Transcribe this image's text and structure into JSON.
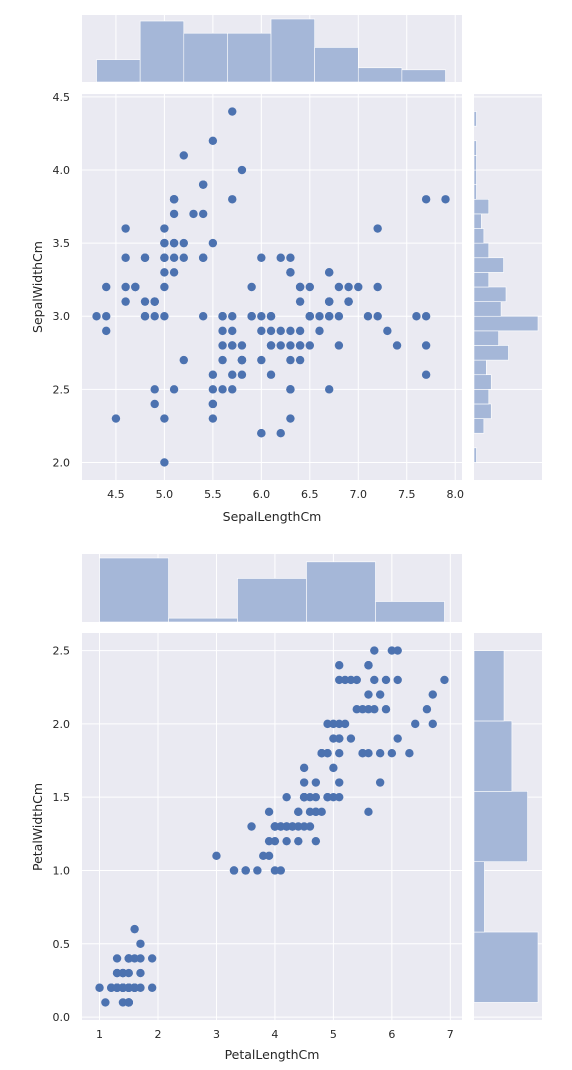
{
  "chart_data": [
    {
      "type": "scatter",
      "xlabel": "SepalLengthCm",
      "ylabel": "SepalWidthCm",
      "xlim": [
        4.15,
        8.07
      ],
      "ylim": [
        1.88,
        4.52
      ],
      "xticks": [
        4.5,
        5.0,
        5.5,
        6.0,
        6.5,
        7.0,
        7.5,
        8.0
      ],
      "xtick_labels": [
        "4.5",
        "5.0",
        "5.5",
        "6.0",
        "6.5",
        "7.0",
        "7.5",
        "8.0"
      ],
      "yticks": [
        2.0,
        2.5,
        3.0,
        3.5,
        4.0,
        4.5
      ],
      "ytick_labels": [
        "2.0",
        "2.5",
        "3.0",
        "3.5",
        "4.0",
        "4.5"
      ],
      "grid": true,
      "point_color": "#4c72b0",
      "hist_color": "#a5b7d8",
      "bg_color": "#eaeaf2",
      "points": [
        [
          5.1,
          3.5
        ],
        [
          4.9,
          3.0
        ],
        [
          4.7,
          3.2
        ],
        [
          4.6,
          3.1
        ],
        [
          5.0,
          3.6
        ],
        [
          5.4,
          3.9
        ],
        [
          4.6,
          3.4
        ],
        [
          5.0,
          3.4
        ],
        [
          4.4,
          2.9
        ],
        [
          4.9,
          3.1
        ],
        [
          5.4,
          3.7
        ],
        [
          4.8,
          3.4
        ],
        [
          4.8,
          3.0
        ],
        [
          4.3,
          3.0
        ],
        [
          5.8,
          4.0
        ],
        [
          5.7,
          4.4
        ],
        [
          5.4,
          3.9
        ],
        [
          5.1,
          3.5
        ],
        [
          5.7,
          3.8
        ],
        [
          5.1,
          3.8
        ],
        [
          5.4,
          3.4
        ],
        [
          5.1,
          3.7
        ],
        [
          4.6,
          3.6
        ],
        [
          5.1,
          3.3
        ],
        [
          4.8,
          3.4
        ],
        [
          5.0,
          3.0
        ],
        [
          5.0,
          3.4
        ],
        [
          5.2,
          3.5
        ],
        [
          5.2,
          3.4
        ],
        [
          4.7,
          3.2
        ],
        [
          4.8,
          3.1
        ],
        [
          5.4,
          3.4
        ],
        [
          5.2,
          4.1
        ],
        [
          5.5,
          4.2
        ],
        [
          4.9,
          3.1
        ],
        [
          5.0,
          3.2
        ],
        [
          5.5,
          3.5
        ],
        [
          4.9,
          3.1
        ],
        [
          4.4,
          3.0
        ],
        [
          5.1,
          3.4
        ],
        [
          5.0,
          3.5
        ],
        [
          4.5,
          2.3
        ],
        [
          4.4,
          3.2
        ],
        [
          5.0,
          3.5
        ],
        [
          5.1,
          3.8
        ],
        [
          4.8,
          3.0
        ],
        [
          5.1,
          3.8
        ],
        [
          4.6,
          3.2
        ],
        [
          5.3,
          3.7
        ],
        [
          5.0,
          3.3
        ],
        [
          7.0,
          3.2
        ],
        [
          6.4,
          3.2
        ],
        [
          6.9,
          3.1
        ],
        [
          5.5,
          2.3
        ],
        [
          6.5,
          2.8
        ],
        [
          5.7,
          2.8
        ],
        [
          6.3,
          3.3
        ],
        [
          4.9,
          2.4
        ],
        [
          6.6,
          2.9
        ],
        [
          5.2,
          2.7
        ],
        [
          5.0,
          2.0
        ],
        [
          5.9,
          3.0
        ],
        [
          6.0,
          2.2
        ],
        [
          6.1,
          2.9
        ],
        [
          5.6,
          2.9
        ],
        [
          6.7,
          3.1
        ],
        [
          5.6,
          3.0
        ],
        [
          5.8,
          2.7
        ],
        [
          6.2,
          2.2
        ],
        [
          5.6,
          2.5
        ],
        [
          5.9,
          3.2
        ],
        [
          6.1,
          2.8
        ],
        [
          6.3,
          2.5
        ],
        [
          6.1,
          2.8
        ],
        [
          6.4,
          2.9
        ],
        [
          6.6,
          3.0
        ],
        [
          6.8,
          2.8
        ],
        [
          6.7,
          3.0
        ],
        [
          6.0,
          2.9
        ],
        [
          5.7,
          2.6
        ],
        [
          5.5,
          2.4
        ],
        [
          5.5,
          2.4
        ],
        [
          5.8,
          2.7
        ],
        [
          6.0,
          2.7
        ],
        [
          5.4,
          3.0
        ],
        [
          6.0,
          3.4
        ],
        [
          6.7,
          3.1
        ],
        [
          6.3,
          2.3
        ],
        [
          5.6,
          3.0
        ],
        [
          5.5,
          2.5
        ],
        [
          5.5,
          2.6
        ],
        [
          6.1,
          3.0
        ],
        [
          5.8,
          2.6
        ],
        [
          5.0,
          2.3
        ],
        [
          5.6,
          2.7
        ],
        [
          5.7,
          3.0
        ],
        [
          5.7,
          2.9
        ],
        [
          6.2,
          2.9
        ],
        [
          5.1,
          2.5
        ],
        [
          5.7,
          2.8
        ],
        [
          6.3,
          3.3
        ],
        [
          5.8,
          2.7
        ],
        [
          7.1,
          3.0
        ],
        [
          6.3,
          2.9
        ],
        [
          6.5,
          3.0
        ],
        [
          7.6,
          3.0
        ],
        [
          4.9,
          2.5
        ],
        [
          7.3,
          2.9
        ],
        [
          6.7,
          2.5
        ],
        [
          7.2,
          3.6
        ],
        [
          6.5,
          3.2
        ],
        [
          6.4,
          2.7
        ],
        [
          6.8,
          3.0
        ],
        [
          5.7,
          2.5
        ],
        [
          5.8,
          2.8
        ],
        [
          6.4,
          3.2
        ],
        [
          6.5,
          3.0
        ],
        [
          7.7,
          3.8
        ],
        [
          7.7,
          2.6
        ],
        [
          6.0,
          2.2
        ],
        [
          6.9,
          3.2
        ],
        [
          5.6,
          2.8
        ],
        [
          7.7,
          2.8
        ],
        [
          6.3,
          2.7
        ],
        [
          6.7,
          3.3
        ],
        [
          7.2,
          3.2
        ],
        [
          6.2,
          2.8
        ],
        [
          6.1,
          3.0
        ],
        [
          6.4,
          2.8
        ],
        [
          7.2,
          3.0
        ],
        [
          7.4,
          2.8
        ],
        [
          7.9,
          3.8
        ],
        [
          6.4,
          2.8
        ],
        [
          6.3,
          2.8
        ],
        [
          6.1,
          2.6
        ],
        [
          7.7,
          3.0
        ],
        [
          6.3,
          3.4
        ],
        [
          6.4,
          3.1
        ],
        [
          6.0,
          3.0
        ],
        [
          6.9,
          3.1
        ],
        [
          6.7,
          3.1
        ],
        [
          6.9,
          3.1
        ],
        [
          5.8,
          2.7
        ],
        [
          6.8,
          3.2
        ],
        [
          6.7,
          3.3
        ],
        [
          6.7,
          3.0
        ],
        [
          6.3,
          2.5
        ],
        [
          6.5,
          3.0
        ],
        [
          6.2,
          3.4
        ],
        [
          5.9,
          3.0
        ]
      ],
      "top_hist": {
        "edges": [
          4.3,
          4.75,
          5.2,
          5.65,
          6.1,
          6.55,
          7.0,
          7.45,
          7.9
        ],
        "counts": [
          11,
          30,
          24,
          24,
          31,
          17,
          7,
          6
        ]
      },
      "right_hist": {
        "edges": [
          2.0,
          2.1,
          2.2,
          2.3,
          2.4,
          2.5,
          2.6,
          2.7,
          2.8,
          2.9,
          3.0,
          3.1,
          3.2,
          3.3,
          3.4,
          3.5,
          3.6,
          3.7,
          3.8,
          3.9,
          4.0,
          4.1,
          4.2,
          4.3,
          4.4
        ],
        "counts": [
          1,
          0,
          4,
          7,
          6,
          7,
          5,
          14,
          10,
          26,
          11,
          13,
          6,
          12,
          6,
          4,
          3,
          6,
          1,
          1,
          1,
          1,
          0,
          1
        ]
      }
    },
    {
      "type": "scatter",
      "xlabel": "PetalLengthCm",
      "ylabel": "PetalWidthCm",
      "xlim": [
        0.7,
        7.2
      ],
      "ylim": [
        -0.02,
        2.62
      ],
      "xticks": [
        1,
        2,
        3,
        4,
        5,
        6,
        7
      ],
      "xtick_labels": [
        "1",
        "2",
        "3",
        "4",
        "5",
        "6",
        "7"
      ],
      "yticks": [
        0.0,
        0.5,
        1.0,
        1.5,
        2.0,
        2.5
      ],
      "ytick_labels": [
        "0.0",
        "0.5",
        "1.0",
        "1.5",
        "2.0",
        "2.5"
      ],
      "grid": true,
      "point_color": "#4c72b0",
      "hist_color": "#a5b7d8",
      "bg_color": "#eaeaf2",
      "points": [
        [
          1.4,
          0.2
        ],
        [
          1.4,
          0.2
        ],
        [
          1.3,
          0.2
        ],
        [
          1.5,
          0.2
        ],
        [
          1.4,
          0.2
        ],
        [
          1.7,
          0.4
        ],
        [
          1.4,
          0.3
        ],
        [
          1.5,
          0.2
        ],
        [
          1.4,
          0.2
        ],
        [
          1.5,
          0.1
        ],
        [
          1.5,
          0.2
        ],
        [
          1.6,
          0.2
        ],
        [
          1.4,
          0.1
        ],
        [
          1.1,
          0.1
        ],
        [
          1.2,
          0.2
        ],
        [
          1.5,
          0.4
        ],
        [
          1.3,
          0.4
        ],
        [
          1.4,
          0.3
        ],
        [
          1.7,
          0.3
        ],
        [
          1.5,
          0.3
        ],
        [
          1.7,
          0.2
        ],
        [
          1.5,
          0.4
        ],
        [
          1.0,
          0.2
        ],
        [
          1.7,
          0.5
        ],
        [
          1.9,
          0.2
        ],
        [
          1.6,
          0.2
        ],
        [
          1.6,
          0.4
        ],
        [
          1.5,
          0.2
        ],
        [
          1.4,
          0.2
        ],
        [
          1.6,
          0.2
        ],
        [
          1.6,
          0.2
        ],
        [
          1.5,
          0.4
        ],
        [
          1.5,
          0.1
        ],
        [
          1.4,
          0.2
        ],
        [
          1.5,
          0.1
        ],
        [
          1.2,
          0.2
        ],
        [
          1.3,
          0.2
        ],
        [
          1.5,
          0.1
        ],
        [
          1.3,
          0.2
        ],
        [
          1.5,
          0.2
        ],
        [
          1.3,
          0.3
        ],
        [
          1.3,
          0.3
        ],
        [
          1.3,
          0.2
        ],
        [
          1.6,
          0.6
        ],
        [
          1.9,
          0.4
        ],
        [
          1.4,
          0.3
        ],
        [
          1.6,
          0.2
        ],
        [
          1.4,
          0.2
        ],
        [
          1.5,
          0.2
        ],
        [
          1.4,
          0.2
        ],
        [
          4.7,
          1.4
        ],
        [
          4.5,
          1.5
        ],
        [
          4.9,
          1.5
        ],
        [
          4.0,
          1.3
        ],
        [
          4.6,
          1.5
        ],
        [
          4.5,
          1.3
        ],
        [
          4.7,
          1.6
        ],
        [
          3.3,
          1.0
        ],
        [
          4.6,
          1.3
        ],
        [
          3.9,
          1.4
        ],
        [
          3.5,
          1.0
        ],
        [
          4.2,
          1.5
        ],
        [
          4.0,
          1.0
        ],
        [
          4.7,
          1.4
        ],
        [
          3.6,
          1.3
        ],
        [
          4.4,
          1.4
        ],
        [
          4.5,
          1.5
        ],
        [
          4.1,
          1.0
        ],
        [
          4.5,
          1.5
        ],
        [
          3.9,
          1.1
        ],
        [
          4.8,
          1.8
        ],
        [
          4.0,
          1.3
        ],
        [
          4.9,
          1.5
        ],
        [
          4.7,
          1.2
        ],
        [
          4.3,
          1.3
        ],
        [
          4.4,
          1.4
        ],
        [
          4.8,
          1.4
        ],
        [
          5.0,
          1.7
        ],
        [
          4.5,
          1.5
        ],
        [
          3.5,
          1.0
        ],
        [
          3.8,
          1.1
        ],
        [
          3.7,
          1.0
        ],
        [
          3.9,
          1.2
        ],
        [
          5.1,
          1.6
        ],
        [
          4.5,
          1.5
        ],
        [
          4.5,
          1.6
        ],
        [
          4.7,
          1.5
        ],
        [
          4.4,
          1.3
        ],
        [
          4.1,
          1.3
        ],
        [
          4.0,
          1.3
        ],
        [
          4.4,
          1.2
        ],
        [
          4.6,
          1.4
        ],
        [
          4.0,
          1.2
        ],
        [
          3.3,
          1.0
        ],
        [
          4.2,
          1.3
        ],
        [
          4.2,
          1.2
        ],
        [
          4.2,
          1.3
        ],
        [
          4.3,
          1.3
        ],
        [
          3.0,
          1.1
        ],
        [
          4.1,
          1.3
        ],
        [
          6.0,
          2.5
        ],
        [
          5.1,
          1.9
        ],
        [
          5.9,
          2.1
        ],
        [
          5.6,
          1.8
        ],
        [
          5.8,
          2.2
        ],
        [
          6.6,
          2.1
        ],
        [
          4.5,
          1.7
        ],
        [
          6.3,
          1.8
        ],
        [
          5.8,
          1.8
        ],
        [
          6.1,
          2.5
        ],
        [
          5.1,
          2.0
        ],
        [
          5.3,
          1.9
        ],
        [
          5.5,
          2.1
        ],
        [
          5.0,
          2.0
        ],
        [
          5.1,
          2.4
        ],
        [
          5.3,
          2.3
        ],
        [
          5.5,
          1.8
        ],
        [
          6.7,
          2.2
        ],
        [
          6.9,
          2.3
        ],
        [
          5.0,
          1.5
        ],
        [
          5.7,
          2.3
        ],
        [
          4.9,
          2.0
        ],
        [
          6.7,
          2.0
        ],
        [
          4.9,
          1.8
        ],
        [
          5.7,
          2.1
        ],
        [
          6.0,
          1.8
        ],
        [
          4.8,
          1.8
        ],
        [
          4.9,
          1.8
        ],
        [
          5.6,
          2.1
        ],
        [
          5.8,
          1.6
        ],
        [
          6.1,
          1.9
        ],
        [
          6.4,
          2.0
        ],
        [
          5.6,
          2.2
        ],
        [
          5.1,
          1.5
        ],
        [
          5.6,
          1.4
        ],
        [
          6.1,
          2.3
        ],
        [
          5.6,
          2.4
        ],
        [
          5.5,
          1.8
        ],
        [
          4.8,
          1.8
        ],
        [
          5.4,
          2.1
        ],
        [
          5.6,
          2.4
        ],
        [
          5.1,
          2.3
        ],
        [
          5.1,
          1.9
        ],
        [
          5.9,
          2.3
        ],
        [
          5.7,
          2.5
        ],
        [
          5.2,
          2.3
        ],
        [
          5.0,
          1.9
        ],
        [
          5.2,
          2.0
        ],
        [
          5.4,
          2.3
        ],
        [
          5.1,
          1.8
        ]
      ],
      "top_hist": {
        "edges": [
          1.0,
          2.18,
          3.36,
          4.54,
          5.72,
          6.9
        ],
        "counts": [
          50,
          3,
          34,
          47,
          16
        ]
      },
      "right_hist": {
        "edges": [
          0.1,
          0.58,
          1.06,
          1.54,
          2.02,
          2.5
        ],
        "counts": [
          49,
          8,
          41,
          29,
          23
        ]
      }
    }
  ]
}
